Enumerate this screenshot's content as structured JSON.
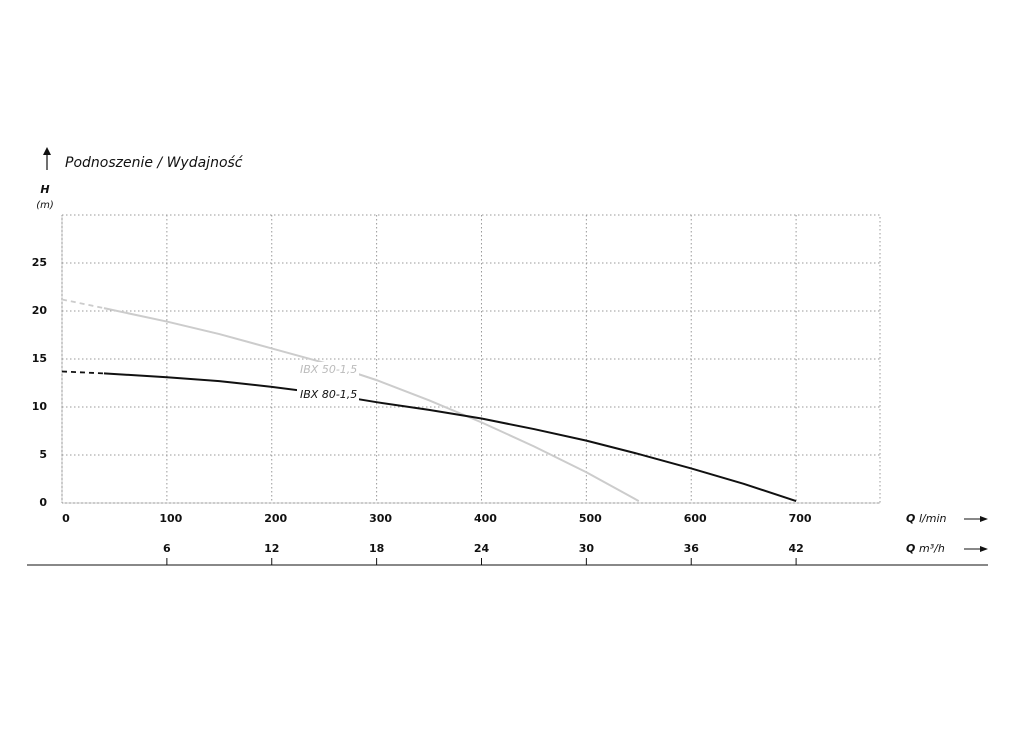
{
  "chart_data": {
    "type": "line",
    "title": "Podnoszenie / Wydajność",
    "y_label": {
      "symbol": "H",
      "unit": "(m)"
    },
    "x_label": {
      "symbol": "Q",
      "unit": "l/min"
    },
    "x2_label": {
      "symbol": "Q",
      "unit": "m³/h"
    },
    "xlim": [
      0,
      780
    ],
    "xticks": [
      0,
      100,
      200,
      300,
      400,
      500,
      600,
      700
    ],
    "x2lim": [
      0,
      46.8
    ],
    "x2ticks": [
      6,
      12,
      18,
      24,
      30,
      36,
      42
    ],
    "ylim": [
      0,
      30
    ],
    "yticks": [
      0,
      5,
      10,
      15,
      20,
      25
    ],
    "grid": true,
    "grid_style": "dotted",
    "dash_first_segment": true,
    "series": [
      {
        "name": "IBX 50-1,5",
        "color": "#cccccc",
        "x": [
          0,
          40,
          100,
          150,
          200,
          250,
          300,
          350,
          400,
          450,
          500,
          550
        ],
        "values": [
          21.2,
          20.3,
          18.9,
          17.6,
          16.1,
          14.6,
          12.8,
          10.7,
          8.4,
          5.9,
          3.2,
          0.2
        ]
      },
      {
        "name": "IBX 80-1,5",
        "color": "#111111",
        "x": [
          0,
          40,
          100,
          150,
          200,
          250,
          300,
          350,
          400,
          450,
          500,
          550,
          600,
          650,
          700
        ],
        "values": [
          13.7,
          13.5,
          13.1,
          12.7,
          12.1,
          11.4,
          10.5,
          9.7,
          8.8,
          7.7,
          6.5,
          5.1,
          3.6,
          2.0,
          0.2
        ]
      }
    ]
  }
}
